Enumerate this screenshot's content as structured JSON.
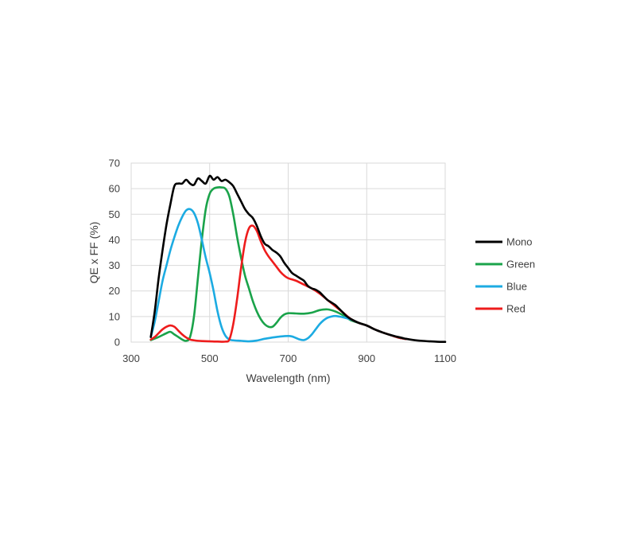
{
  "chart_data": {
    "type": "line",
    "title": "",
    "xlabel": "Wavelength (nm)",
    "ylabel": "QE x FF (%)",
    "xlim": [
      300,
      1100
    ],
    "ylim": [
      0,
      70
    ],
    "xticks": [
      300,
      500,
      700,
      900,
      1100
    ],
    "yticks": [
      0,
      10,
      20,
      30,
      40,
      50,
      60,
      70
    ],
    "grid": true,
    "legend_position": "right",
    "series": [
      {
        "name": "Mono",
        "color": "#000000",
        "points": [
          [
            350,
            2
          ],
          [
            360,
            12
          ],
          [
            370,
            25
          ],
          [
            380,
            36
          ],
          [
            390,
            46
          ],
          [
            400,
            54
          ],
          [
            410,
            61
          ],
          [
            420,
            62
          ],
          [
            430,
            62
          ],
          [
            440,
            63.5
          ],
          [
            450,
            62
          ],
          [
            460,
            61.5
          ],
          [
            470,
            64
          ],
          [
            480,
            63
          ],
          [
            490,
            62
          ],
          [
            500,
            65
          ],
          [
            510,
            63.5
          ],
          [
            520,
            64.5
          ],
          [
            530,
            63
          ],
          [
            540,
            63.5
          ],
          [
            550,
            62.5
          ],
          [
            560,
            61
          ],
          [
            570,
            58
          ],
          [
            580,
            55
          ],
          [
            590,
            52
          ],
          [
            600,
            50
          ],
          [
            610,
            48.5
          ],
          [
            620,
            45.5
          ],
          [
            630,
            41.5
          ],
          [
            640,
            38.5
          ],
          [
            650,
            37.5
          ],
          [
            660,
            36
          ],
          [
            670,
            35
          ],
          [
            680,
            33.5
          ],
          [
            690,
            31
          ],
          [
            700,
            29
          ],
          [
            710,
            27
          ],
          [
            720,
            26
          ],
          [
            730,
            25
          ],
          [
            740,
            24
          ],
          [
            750,
            22
          ],
          [
            760,
            21
          ],
          [
            770,
            20.5
          ],
          [
            780,
            19.5
          ],
          [
            790,
            18
          ],
          [
            800,
            16.5
          ],
          [
            810,
            15.5
          ],
          [
            820,
            14.5
          ],
          [
            830,
            13
          ],
          [
            840,
            11.5
          ],
          [
            850,
            10
          ],
          [
            860,
            9
          ],
          [
            880,
            7.5
          ],
          [
            900,
            6.5
          ],
          [
            920,
            5
          ],
          [
            940,
            3.8
          ],
          [
            960,
            2.8
          ],
          [
            980,
            2
          ],
          [
            1000,
            1.3
          ],
          [
            1020,
            0.8
          ],
          [
            1040,
            0.5
          ],
          [
            1060,
            0.3
          ],
          [
            1080,
            0.15
          ],
          [
            1100,
            0.1
          ]
        ]
      },
      {
        "name": "Green",
        "color": "#1aa34a",
        "points": [
          [
            350,
            0.8
          ],
          [
            370,
            2
          ],
          [
            390,
            3.5
          ],
          [
            400,
            4
          ],
          [
            410,
            3
          ],
          [
            420,
            2
          ],
          [
            430,
            1
          ],
          [
            440,
            0.5
          ],
          [
            450,
            2
          ],
          [
            460,
            10
          ],
          [
            470,
            25
          ],
          [
            480,
            40
          ],
          [
            490,
            52
          ],
          [
            500,
            58
          ],
          [
            510,
            60
          ],
          [
            520,
            60.5
          ],
          [
            530,
            60.5
          ],
          [
            540,
            60
          ],
          [
            550,
            57
          ],
          [
            560,
            50
          ],
          [
            570,
            41
          ],
          [
            580,
            33
          ],
          [
            590,
            26
          ],
          [
            600,
            21
          ],
          [
            610,
            16
          ],
          [
            620,
            12
          ],
          [
            630,
            9
          ],
          [
            640,
            7
          ],
          [
            650,
            6
          ],
          [
            660,
            6
          ],
          [
            670,
            7.5
          ],
          [
            680,
            9.5
          ],
          [
            690,
            10.8
          ],
          [
            700,
            11.3
          ],
          [
            720,
            11.2
          ],
          [
            740,
            11.1
          ],
          [
            760,
            11.5
          ],
          [
            780,
            12.5
          ],
          [
            800,
            12.8
          ],
          [
            820,
            12
          ],
          [
            840,
            10.5
          ],
          [
            850,
            9.5
          ],
          [
            860,
            8.5
          ],
          [
            880,
            7.5
          ],
          [
            900,
            6.5
          ],
          [
            920,
            5
          ],
          [
            940,
            3.8
          ],
          [
            960,
            2.8
          ],
          [
            980,
            1.8
          ],
          [
            1000,
            1.2
          ]
        ]
      },
      {
        "name": "Blue",
        "color": "#1cabe2",
        "points": [
          [
            350,
            2
          ],
          [
            360,
            8
          ],
          [
            370,
            16
          ],
          [
            380,
            24
          ],
          [
            390,
            30
          ],
          [
            400,
            36
          ],
          [
            410,
            41
          ],
          [
            420,
            45.5
          ],
          [
            430,
            49
          ],
          [
            440,
            51.5
          ],
          [
            450,
            52
          ],
          [
            460,
            50.5
          ],
          [
            470,
            46.5
          ],
          [
            480,
            40
          ],
          [
            490,
            33
          ],
          [
            500,
            27
          ],
          [
            510,
            20
          ],
          [
            520,
            12
          ],
          [
            530,
            6
          ],
          [
            540,
            2.5
          ],
          [
            550,
            1
          ],
          [
            560,
            0.7
          ],
          [
            580,
            0.5
          ],
          [
            600,
            0.3
          ],
          [
            620,
            0.6
          ],
          [
            640,
            1.3
          ],
          [
            660,
            1.8
          ],
          [
            680,
            2.2
          ],
          [
            700,
            2.4
          ],
          [
            710,
            2.2
          ],
          [
            720,
            1.6
          ],
          [
            730,
            1
          ],
          [
            740,
            0.8
          ],
          [
            750,
            1.5
          ],
          [
            760,
            3
          ],
          [
            770,
            5
          ],
          [
            780,
            7
          ],
          [
            790,
            8.5
          ],
          [
            800,
            9.5
          ],
          [
            810,
            10
          ],
          [
            820,
            10.2
          ],
          [
            830,
            10
          ],
          [
            840,
            9.7
          ],
          [
            850,
            9.3
          ],
          [
            860,
            8.8
          ],
          [
            880,
            7.5
          ],
          [
            900,
            6.5
          ],
          [
            920,
            5
          ],
          [
            940,
            3.8
          ],
          [
            960,
            2.8
          ],
          [
            980,
            1.8
          ],
          [
            1000,
            1.2
          ]
        ]
      },
      {
        "name": "Red",
        "color": "#ee1c1c",
        "points": [
          [
            350,
            1
          ],
          [
            360,
            2
          ],
          [
            370,
            3.5
          ],
          [
            380,
            5
          ],
          [
            390,
            6
          ],
          [
            400,
            6.5
          ],
          [
            410,
            6
          ],
          [
            420,
            4.5
          ],
          [
            430,
            3
          ],
          [
            440,
            1.8
          ],
          [
            450,
            1
          ],
          [
            460,
            0.7
          ],
          [
            470,
            0.5
          ],
          [
            480,
            0.4
          ],
          [
            500,
            0.3
          ],
          [
            520,
            0.2
          ],
          [
            540,
            0.2
          ],
          [
            550,
            1
          ],
          [
            560,
            7
          ],
          [
            570,
            17
          ],
          [
            580,
            29
          ],
          [
            590,
            39
          ],
          [
            600,
            44.5
          ],
          [
            610,
            45.5
          ],
          [
            620,
            43.5
          ],
          [
            630,
            39.5
          ],
          [
            640,
            36
          ],
          [
            650,
            33.5
          ],
          [
            660,
            31.5
          ],
          [
            670,
            29.5
          ],
          [
            680,
            27.5
          ],
          [
            690,
            26
          ],
          [
            700,
            25
          ],
          [
            720,
            24
          ],
          [
            740,
            22.5
          ],
          [
            760,
            21
          ],
          [
            780,
            19
          ],
          [
            800,
            16.5
          ],
          [
            820,
            14
          ],
          [
            840,
            11.5
          ],
          [
            860,
            9
          ],
          [
            880,
            7.5
          ],
          [
            900,
            6.5
          ],
          [
            920,
            5
          ],
          [
            940,
            3.8
          ],
          [
            960,
            2.8
          ],
          [
            980,
            1.8
          ],
          [
            1000,
            1.2
          ]
        ]
      }
    ]
  }
}
